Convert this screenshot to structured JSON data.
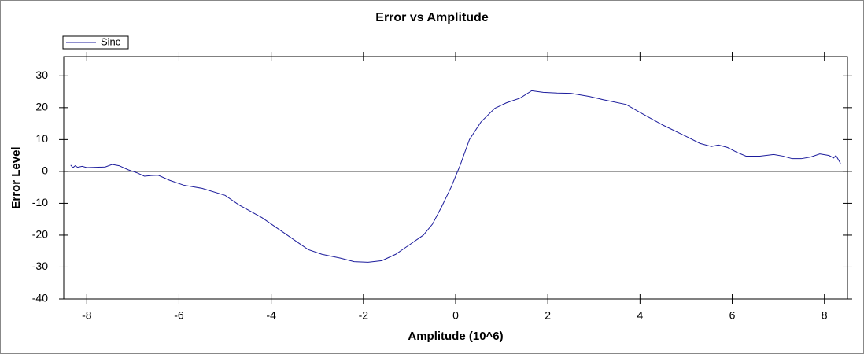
{
  "chart_data": {
    "type": "line",
    "title": "Error vs Amplitude",
    "xlabel": "Amplitude (10^6)",
    "ylabel": "Error Level",
    "legend": "top-left",
    "x": [
      -8.35,
      -8.3,
      -8.25,
      -8.2,
      -8.1,
      -8.0,
      -7.8,
      -7.6,
      -7.45,
      -7.3,
      -7.1,
      -6.9,
      -6.75,
      -6.6,
      -6.45,
      -6.2,
      -5.9,
      -5.5,
      -5.0,
      -4.7,
      -4.2,
      -3.7,
      -3.2,
      -2.9,
      -2.5,
      -2.2,
      -1.9,
      -1.6,
      -1.3,
      -1.0,
      -0.7,
      -0.5,
      -0.3,
      -0.1,
      0.1,
      0.3,
      0.55,
      0.85,
      1.1,
      1.4,
      1.65,
      1.9,
      2.2,
      2.5,
      2.9,
      3.2,
      3.7,
      4.0,
      4.5,
      5.0,
      5.3,
      5.55,
      5.7,
      5.9,
      6.1,
      6.3,
      6.6,
      6.9,
      7.1,
      7.3,
      7.5,
      7.7,
      7.9,
      8.1,
      8.2,
      8.25,
      8.35
    ],
    "series": [
      {
        "name": "Sinc",
        "color": "#1c1c9c",
        "values": [
          2.0,
          1.2,
          1.8,
          1.3,
          1.6,
          1.2,
          1.3,
          1.4,
          2.2,
          1.8,
          0.5,
          -0.5,
          -1.5,
          -1.3,
          -1.2,
          -2.8,
          -4.3,
          -5.3,
          -7.5,
          -10.5,
          -14.5,
          -19.5,
          -24.5,
          -26,
          -27.2,
          -28.3,
          -28.5,
          -28,
          -26,
          -23,
          -20,
          -16.5,
          -11,
          -5,
          2,
          10,
          15.5,
          19.8,
          21.5,
          23,
          25.3,
          24.8,
          24.6,
          24.5,
          23.5,
          22.5,
          21,
          18.5,
          14.5,
          11,
          8.8,
          7.8,
          8.3,
          7.5,
          6,
          4.8,
          4.8,
          5.3,
          4.8,
          4,
          4,
          4.5,
          5.5,
          5,
          4.2,
          5,
          2.5
        ]
      }
    ],
    "xlim": [
      -8.5,
      8.5
    ],
    "xticks": [
      -8,
      -6,
      -4,
      -2,
      0,
      2,
      4,
      6,
      8
    ],
    "ylim": [
      -40,
      36
    ],
    "yticks": [
      -40,
      -30,
      -20,
      -10,
      0,
      10,
      20,
      30
    ]
  }
}
